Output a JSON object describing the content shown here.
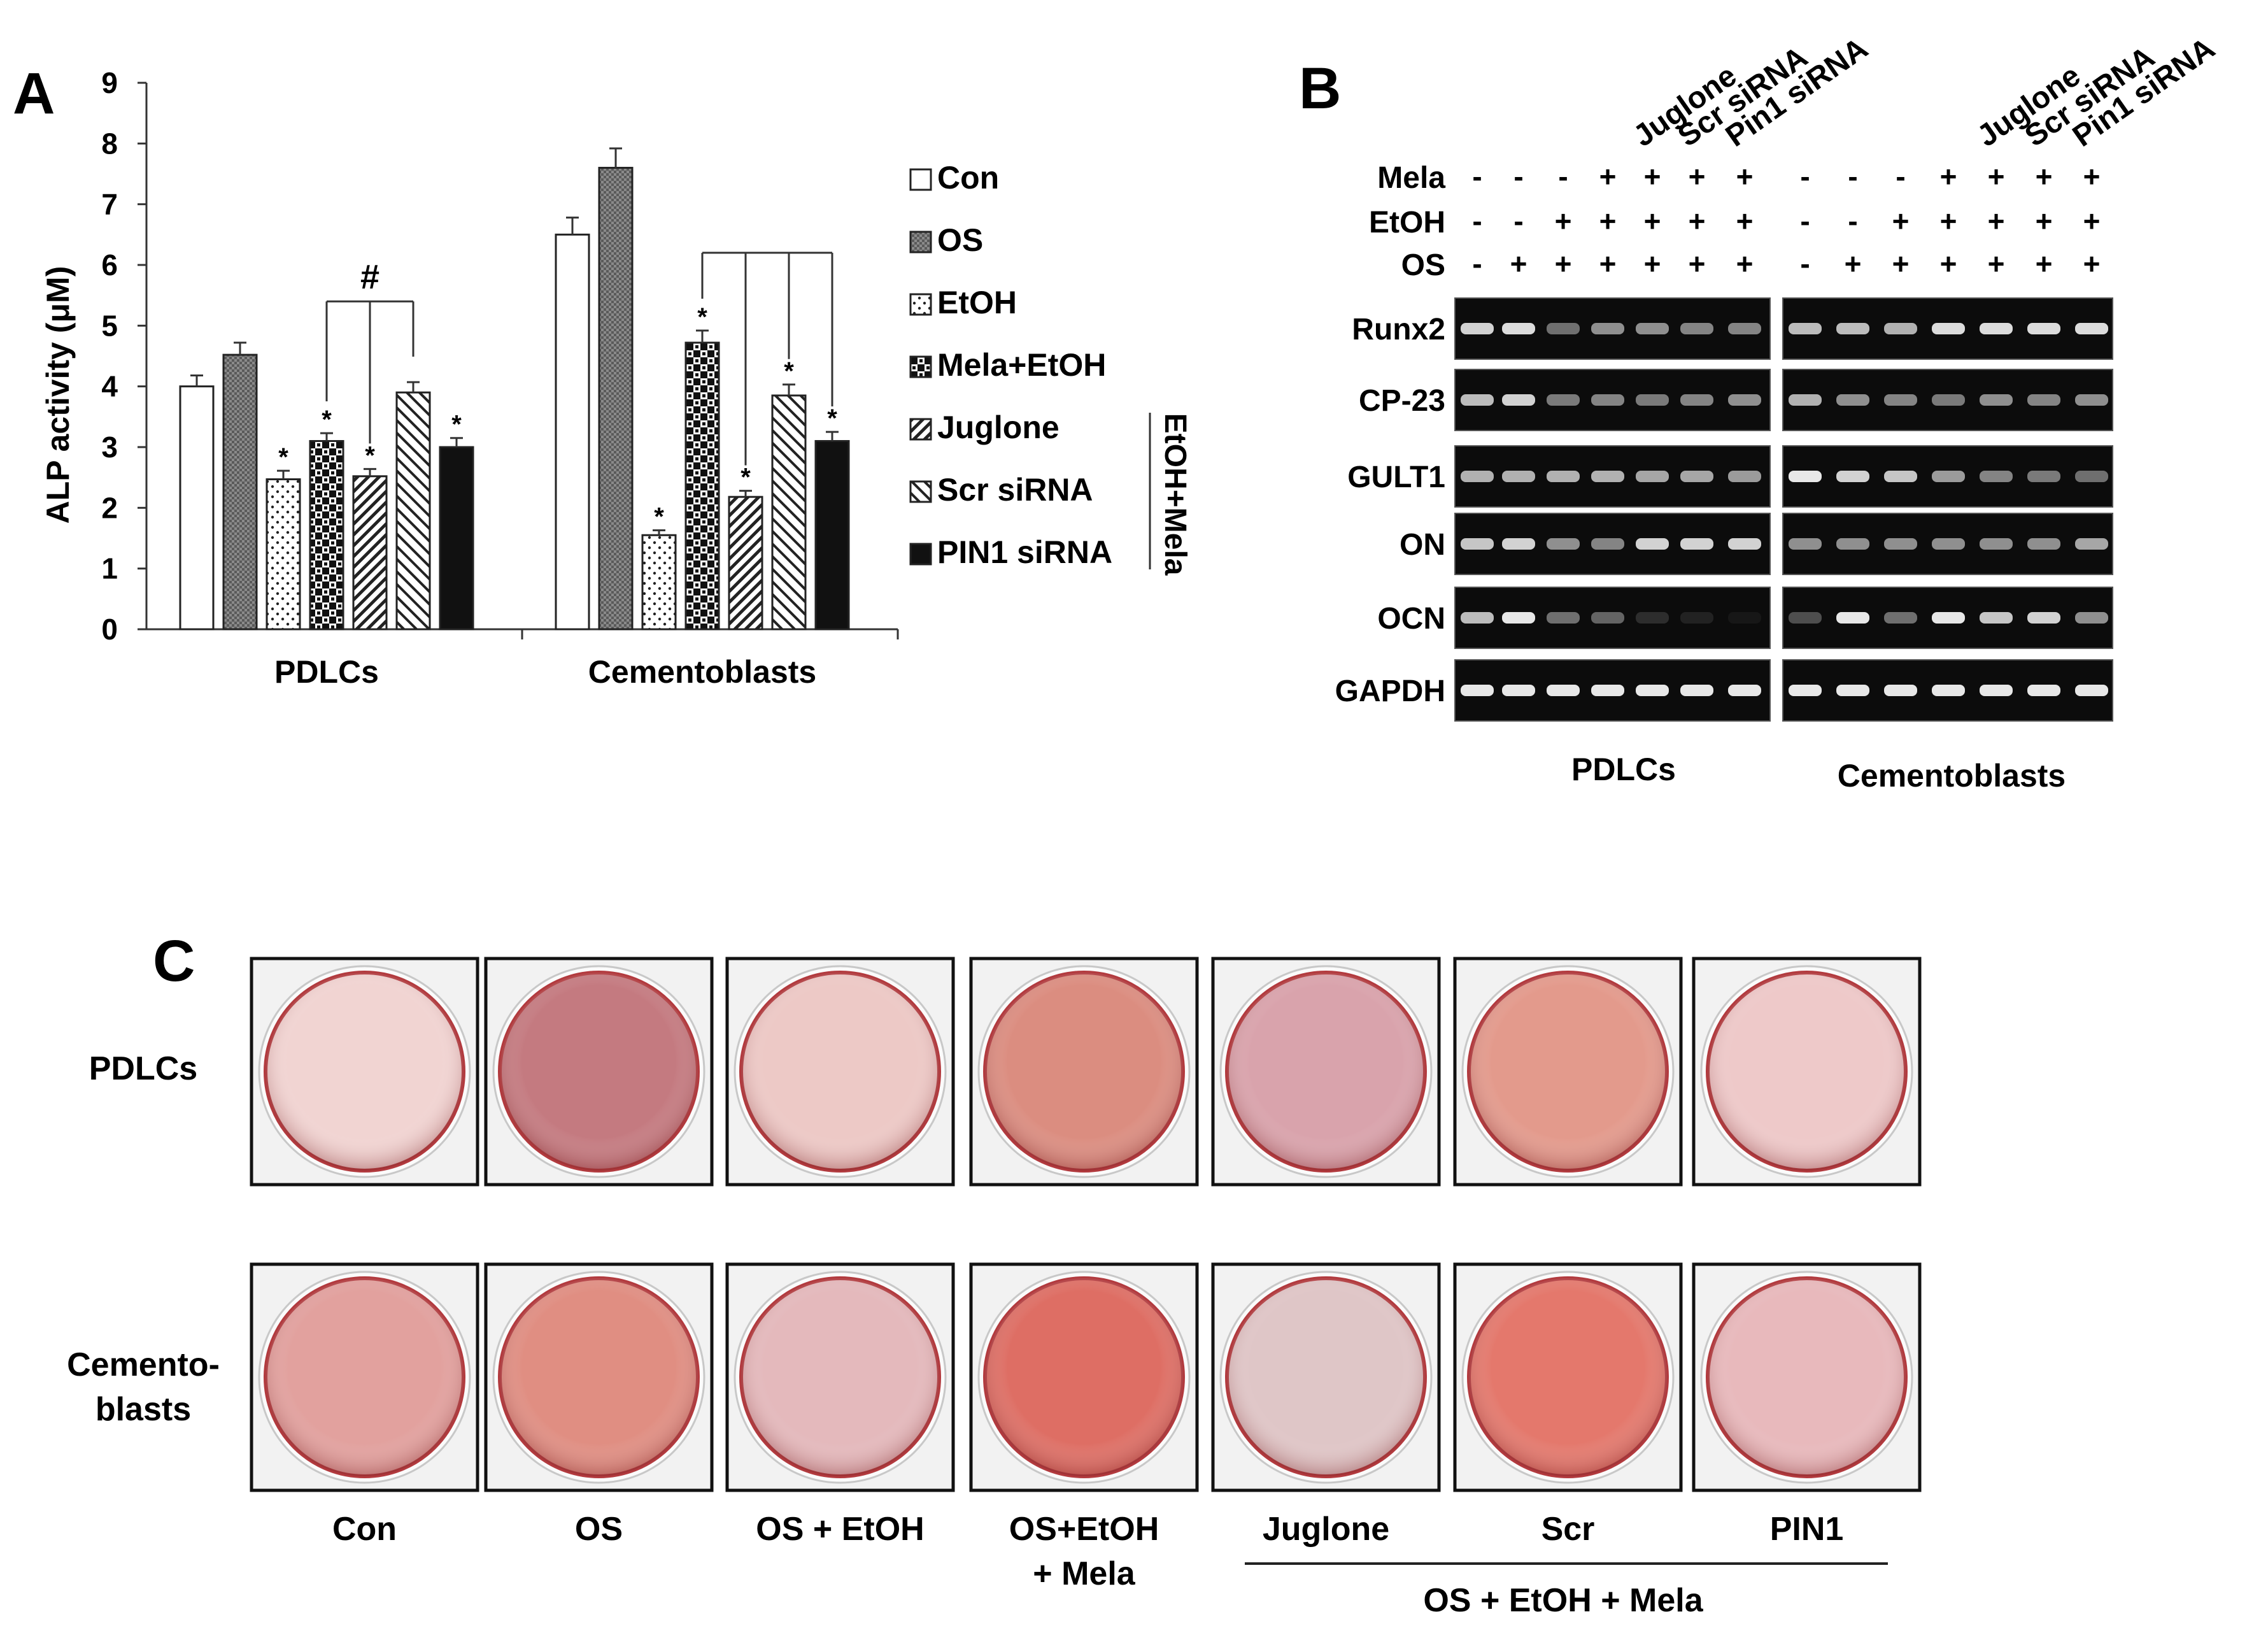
{
  "panel_labels": {
    "a": "A",
    "b": "B",
    "c": "C"
  },
  "chart_data": {
    "type": "bar",
    "ylabel": "ALP activity (μM)",
    "ylim": [
      0,
      9
    ],
    "yticks": [
      "0",
      "1",
      "2",
      "3",
      "4",
      "5",
      "6",
      "7",
      "8",
      "9"
    ],
    "categories": [
      "PDLCs",
      "Cementoblasts"
    ],
    "series": [
      {
        "name": "Con",
        "values": [
          4.0,
          6.5
        ],
        "err": [
          0.18,
          0.28
        ],
        "star": [
          "",
          ""
        ]
      },
      {
        "name": "OS",
        "values": [
          4.52,
          7.6
        ],
        "err": [
          0.2,
          0.32
        ],
        "star": [
          "",
          ""
        ]
      },
      {
        "name": "EtOH",
        "values": [
          2.47,
          1.55
        ],
        "err": [
          0.14,
          0.08
        ],
        "star": [
          "*",
          "*"
        ]
      },
      {
        "name": "Mela+EtOH",
        "values": [
          3.1,
          4.72
        ],
        "err": [
          0.13,
          0.2
        ],
        "star": [
          "*",
          "*"
        ]
      },
      {
        "name": "Juglone",
        "values": [
          2.52,
          2.18
        ],
        "err": [
          0.12,
          0.1
        ],
        "star": [
          "*",
          "*"
        ]
      },
      {
        "name": "Scr siRNA",
        "values": [
          3.9,
          3.85
        ],
        "err": [
          0.17,
          0.18
        ],
        "star": [
          "",
          "*"
        ]
      },
      {
        "name": "PIN1 siRNA",
        "values": [
          3.0,
          3.1
        ],
        "err": [
          0.15,
          0.15
        ],
        "star": [
          "*",
          "*"
        ]
      }
    ],
    "significance_marker": "#",
    "legend_group_label": "EtOH+Mela",
    "legend_placement": "right",
    "grid": false
  },
  "panel_b": {
    "lane_labels": [
      "Juglone",
      "Scr siRNA",
      "Pin1 siRNA"
    ],
    "treatments": [
      {
        "name": "Mela",
        "signs": [
          "-",
          "-",
          "-",
          "+",
          "+",
          "+",
          "+"
        ]
      },
      {
        "name": "EtOH",
        "signs": [
          "-",
          "-",
          "+",
          "+",
          "+",
          "+",
          "+"
        ]
      },
      {
        "name": "OS",
        "signs": [
          "-",
          "+",
          "+",
          "+",
          "+",
          "+",
          "+"
        ]
      }
    ],
    "genes": [
      "Runx2",
      "CP-23",
      "GULT1",
      "ON",
      "OCN",
      "GAPDH"
    ],
    "intensity_pdl": [
      [
        0.9,
        0.95,
        0.45,
        0.6,
        0.6,
        0.55,
        0.55
      ],
      [
        0.8,
        0.9,
        0.5,
        0.55,
        0.5,
        0.55,
        0.6
      ],
      [
        0.75,
        0.75,
        0.75,
        0.75,
        0.7,
        0.7,
        0.65
      ],
      [
        0.85,
        0.9,
        0.6,
        0.55,
        0.9,
        0.9,
        0.9
      ],
      [
        0.8,
        1.0,
        0.45,
        0.4,
        0.15,
        0.1,
        0.05
      ],
      [
        1.0,
        1.0,
        1.0,
        1.0,
        1.0,
        1.0,
        1.0
      ]
    ],
    "intensity_cem": [
      [
        0.8,
        0.8,
        0.75,
        0.95,
        0.95,
        0.95,
        0.95
      ],
      [
        0.75,
        0.6,
        0.55,
        0.5,
        0.6,
        0.55,
        0.6
      ],
      [
        1.0,
        0.9,
        0.85,
        0.65,
        0.55,
        0.5,
        0.45
      ],
      [
        0.6,
        0.6,
        0.6,
        0.6,
        0.6,
        0.6,
        0.7
      ],
      [
        0.3,
        1.0,
        0.45,
        1.0,
        0.85,
        0.9,
        0.6
      ],
      [
        1.0,
        1.0,
        1.0,
        1.0,
        1.0,
        1.0,
        1.0
      ]
    ],
    "group_labels": [
      "PDLCs",
      "Cementoblasts"
    ]
  },
  "panel_c": {
    "row_labels": [
      [
        "PDLCs"
      ],
      [
        "Cemento-",
        "blasts"
      ]
    ],
    "col_labels": [
      [
        "Con"
      ],
      [
        "OS"
      ],
      [
        "OS + EtOH"
      ],
      [
        "OS+EtOH",
        "+ Mela"
      ],
      [
        "Juglone"
      ],
      [
        "Scr"
      ],
      [
        "PIN1"
      ]
    ],
    "group_label": "OS + EtOH + Mela",
    "well_colors_pdl": [
      "#f1d4d2",
      "#c47a80",
      "#edc9c6",
      "#db8d80",
      "#d9a3ac",
      "#e39a8c",
      "#eec9c9"
    ],
    "well_colors_cem": [
      "#e2a19e",
      "#e08e82",
      "#e4b9bc",
      "#de6e64",
      "#dfc6c7",
      "#e4786c",
      "#e8b9bc"
    ]
  }
}
